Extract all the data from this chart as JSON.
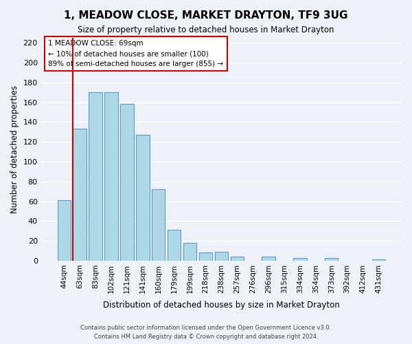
{
  "title": "1, MEADOW CLOSE, MARKET DRAYTON, TF9 3UG",
  "subtitle": "Size of property relative to detached houses in Market Drayton",
  "xlabel": "Distribution of detached houses by size in Market Drayton",
  "ylabel": "Number of detached properties",
  "bar_labels": [
    "44sqm",
    "63sqm",
    "83sqm",
    "102sqm",
    "121sqm",
    "141sqm",
    "160sqm",
    "179sqm",
    "199sqm",
    "218sqm",
    "238sqm",
    "257sqm",
    "276sqm",
    "296sqm",
    "315sqm",
    "334sqm",
    "354sqm",
    "373sqm",
    "392sqm",
    "412sqm",
    "431sqm"
  ],
  "bar_heights": [
    61,
    133,
    170,
    170,
    158,
    127,
    72,
    31,
    18,
    8,
    9,
    4,
    0,
    4,
    0,
    3,
    0,
    3,
    0,
    0,
    1
  ],
  "bar_color": "#add8e6",
  "bar_edge_color": "#5b9bd5",
  "vline_x_index": 1,
  "vline_color": "#cc0000",
  "ylim": [
    0,
    225
  ],
  "yticks": [
    0,
    20,
    40,
    60,
    80,
    100,
    120,
    140,
    160,
    180,
    200,
    220
  ],
  "annotation_line1": "1 MEADOW CLOSE: 69sqm",
  "annotation_line2": "← 10% of detached houses are smaller (100)",
  "annotation_line3": "89% of semi-detached houses are larger (855) →",
  "footer_line1": "Contains HM Land Registry data © Crown copyright and database right 2024.",
  "footer_line2": "Contains public sector information licensed under the Open Government Licence v3.0.",
  "background_color": "#eef2f7",
  "plot_bg_color": "#eef2f7",
  "grid_color": "#ffffff"
}
